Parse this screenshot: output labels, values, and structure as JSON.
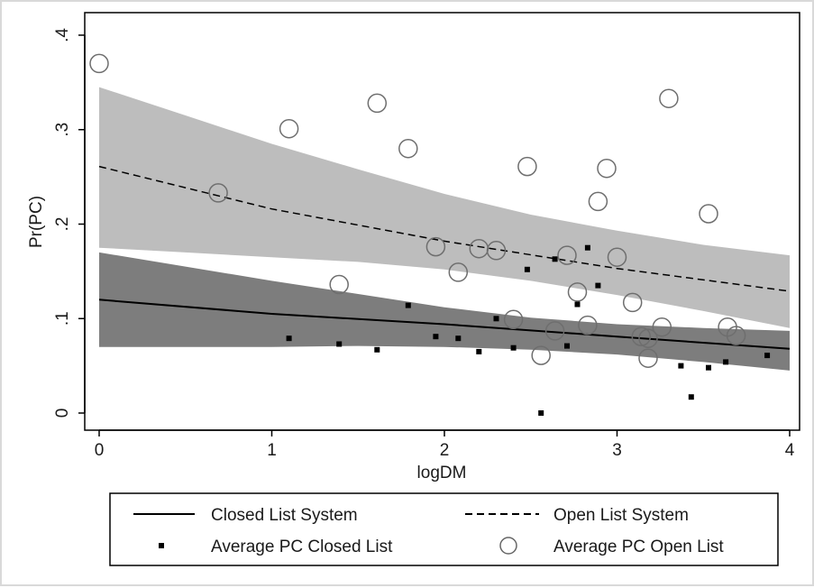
{
  "chart_data": {
    "type": "scatter",
    "title": "",
    "xlabel": "logDM",
    "ylabel": "Pr(PC)",
    "xlim": [
      0,
      4
    ],
    "ylim": [
      0,
      0.4
    ],
    "x_ticks": [
      0,
      1,
      2,
      3,
      4
    ],
    "y_ticks": [
      0,
      0.1,
      0.2,
      0.3,
      0.4
    ],
    "x_tick_labels": [
      "0",
      "1",
      "2",
      "3",
      "4"
    ],
    "y_tick_labels": [
      "0",
      ".1",
      ".2",
      ".3",
      ".4"
    ],
    "grid": false,
    "legend_position": "bottom",
    "bands": [
      {
        "name": "Open List System CI",
        "color": "#bdbdbd",
        "x": [
          0,
          0.5,
          1,
          1.5,
          2,
          2.5,
          3,
          3.5,
          4
        ],
        "lower": [
          0.175,
          0.17,
          0.165,
          0.16,
          0.152,
          0.14,
          0.125,
          0.108,
          0.09
        ],
        "upper": [
          0.345,
          0.315,
          0.285,
          0.258,
          0.232,
          0.21,
          0.193,
          0.178,
          0.167
        ]
      },
      {
        "name": "Closed List System CI",
        "color": "#7d7d7d",
        "x": [
          0,
          0.5,
          1,
          1.5,
          2,
          2.5,
          3,
          3.5,
          4
        ],
        "lower": [
          0.07,
          0.07,
          0.07,
          0.071,
          0.07,
          0.067,
          0.062,
          0.054,
          0.045
        ],
        "upper": [
          0.17,
          0.155,
          0.14,
          0.126,
          0.112,
          0.101,
          0.094,
          0.09,
          0.087
        ]
      }
    ],
    "series": [
      {
        "name": "Closed List System",
        "kind": "line",
        "style": "solid",
        "x": [
          0,
          1,
          2,
          3,
          4
        ],
        "y": [
          0.12,
          0.105,
          0.094,
          0.081,
          0.068
        ]
      },
      {
        "name": "Open List System",
        "kind": "line",
        "style": "dashed",
        "x": [
          0,
          1,
          2,
          3,
          4
        ],
        "y": [
          0.261,
          0.216,
          0.182,
          0.153,
          0.129
        ]
      },
      {
        "name": "Average PC Closed List",
        "kind": "points",
        "marker": "square",
        "points": [
          [
            1.1,
            0.079
          ],
          [
            1.39,
            0.073
          ],
          [
            1.61,
            0.067
          ],
          [
            1.79,
            0.114
          ],
          [
            1.95,
            0.081
          ],
          [
            2.08,
            0.079
          ],
          [
            2.2,
            0.065
          ],
          [
            2.3,
            0.1
          ],
          [
            2.4,
            0.069
          ],
          [
            2.48,
            0.152
          ],
          [
            2.56,
            0.0
          ],
          [
            2.64,
            0.163
          ],
          [
            2.71,
            0.071
          ],
          [
            2.77,
            0.115
          ],
          [
            2.83,
            0.175
          ],
          [
            2.89,
            0.135
          ],
          [
            3.37,
            0.05
          ],
          [
            3.43,
            0.017
          ],
          [
            3.53,
            0.048
          ],
          [
            3.63,
            0.054
          ],
          [
            3.87,
            0.061
          ]
        ]
      },
      {
        "name": "Average PC Open List",
        "kind": "points",
        "marker": "hollow-circle",
        "points": [
          [
            0.0,
            0.37
          ],
          [
            0.69,
            0.233
          ],
          [
            1.1,
            0.301
          ],
          [
            1.39,
            0.136
          ],
          [
            1.61,
            0.328
          ],
          [
            1.79,
            0.28
          ],
          [
            1.95,
            0.176
          ],
          [
            2.08,
            0.149
          ],
          [
            2.2,
            0.174
          ],
          [
            2.3,
            0.172
          ],
          [
            2.4,
            0.099
          ],
          [
            2.48,
            0.261
          ],
          [
            2.56,
            0.061
          ],
          [
            2.64,
            0.087
          ],
          [
            2.71,
            0.167
          ],
          [
            2.77,
            0.128
          ],
          [
            2.83,
            0.093
          ],
          [
            2.89,
            0.224
          ],
          [
            2.94,
            0.259
          ],
          [
            3.0,
            0.165
          ],
          [
            3.09,
            0.117
          ],
          [
            3.14,
            0.081
          ],
          [
            3.18,
            0.079
          ],
          [
            3.26,
            0.091
          ],
          [
            3.3,
            0.333
          ],
          [
            3.18,
            0.058
          ],
          [
            3.53,
            0.211
          ],
          [
            3.64,
            0.091
          ],
          [
            3.69,
            0.082
          ]
        ]
      }
    ],
    "legend": {
      "items": [
        {
          "label": "Closed List System",
          "symbol": "solid-line"
        },
        {
          "label": "Open List System",
          "symbol": "dashed-line"
        },
        {
          "label": "Average PC Closed List",
          "symbol": "square"
        },
        {
          "label": "Average PC Open List",
          "symbol": "hollow-circle"
        }
      ]
    }
  }
}
